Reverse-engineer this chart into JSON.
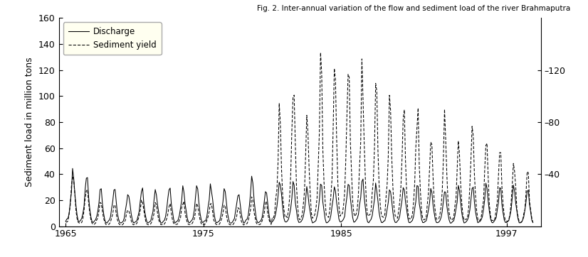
{
  "title": "Fig. 2. Inter-annual variation of the flow and sediment load of the river Brahmaputra",
  "ylabel_left": "Sediment load in million tons",
  "ylabel_right": "",
  "xlim": [
    1964.5,
    1999.5
  ],
  "ylim_left": [
    0,
    160
  ],
  "ylim_right": [
    0,
    160
  ],
  "yticks_left": [
    0,
    20,
    40,
    60,
    80,
    100,
    120,
    140,
    160
  ],
  "yticks_right_vals": [
    40,
    80,
    120
  ],
  "yticks_right_labels": [
    "–40",
    "–80",
    "–120"
  ],
  "xticks": [
    1965,
    1975,
    1985,
    1997
  ],
  "discharge_color": "#000000",
  "sediment_color": "#000000",
  "legend_labels": [
    "Discharge",
    "Sediment yield"
  ],
  "legend_bg": "#fffff0",
  "background_color": "#ffffff",
  "years_start": 1965,
  "years_end": 1998
}
